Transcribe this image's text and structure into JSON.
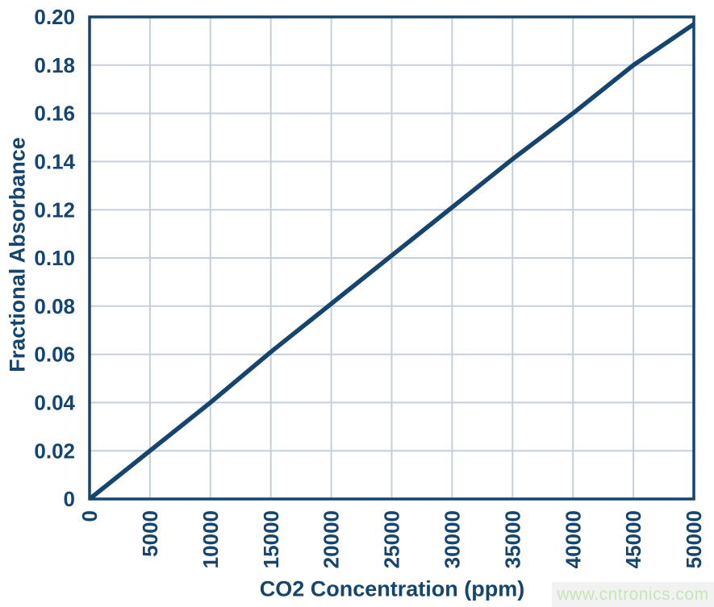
{
  "figure": {
    "watermark_text": "www.cntronics.com"
  },
  "colors": {
    "navy": "#15456f",
    "grid": "#c5cfdb",
    "watermark_green": "#c6e6b4",
    "watermark_bg": "#f2f2f2",
    "background": "#ffffff"
  },
  "chart_data": {
    "type": "line",
    "title": "",
    "xlabel": "CO2 Concentration (ppm)",
    "ylabel": "Fractional Absorbance",
    "x": [
      0,
      5000,
      10000,
      15000,
      20000,
      25000,
      30000,
      35000,
      40000,
      45000,
      50000
    ],
    "series": [
      {
        "name": "Fractional Absorbance vs CO2 Concentration",
        "values": [
          0,
          0.02,
          0.04,
          0.061,
          0.081,
          0.101,
          0.121,
          0.141,
          0.16,
          0.18,
          0.197
        ]
      }
    ],
    "xlim": [
      0,
      50000
    ],
    "ylim": [
      0,
      0.2
    ],
    "x_tick_values": [
      0,
      5000,
      10000,
      15000,
      20000,
      25000,
      30000,
      35000,
      40000,
      45000,
      50000
    ],
    "x_tick_labels": [
      "0",
      "5000",
      "10000",
      "15000",
      "20000",
      "25000",
      "30000",
      "35000",
      "40000",
      "45000",
      "50000"
    ],
    "y_tick_values": [
      0,
      0.02,
      0.04,
      0.06,
      0.08,
      0.1,
      0.12,
      0.14,
      0.16,
      0.18,
      0.2
    ],
    "y_tick_labels": [
      "0",
      "0.02",
      "0.04",
      "0.06",
      "0.08",
      "0.10",
      "0.12",
      "0.14",
      "0.16",
      "0.18",
      "0.20"
    ],
    "grid": true,
    "legend": false,
    "x_tick_rotation": -90
  }
}
